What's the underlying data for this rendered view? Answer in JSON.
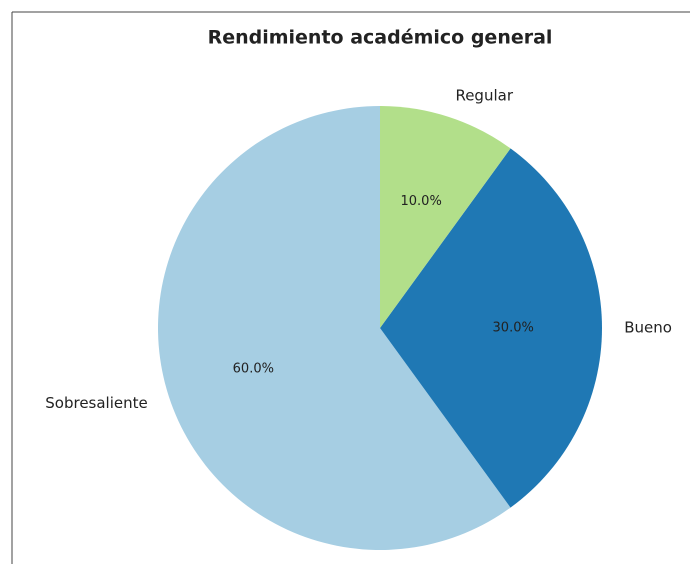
{
  "chart_data": {
    "type": "pie",
    "title": "Rendimiento académico general",
    "categories": [
      "Sobresaliente",
      "Bueno",
      "Regular"
    ],
    "values": [
      60,
      30,
      10
    ],
    "value_labels": [
      "60.0%",
      "30.0%",
      "10.0%"
    ],
    "colors": [
      "#a6cee3",
      "#1f78b4",
      "#b2df8a"
    ]
  }
}
